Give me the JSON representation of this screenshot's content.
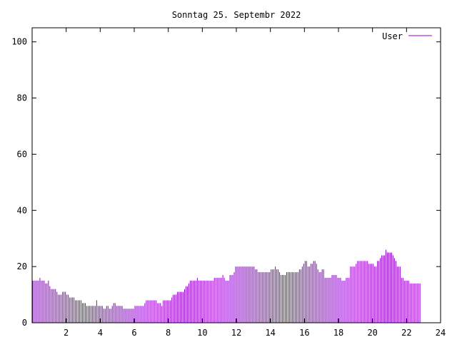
{
  "chart_data": {
    "type": "bar",
    "title": "Sonntag 25. Septembr 2022",
    "xlabel": "",
    "ylabel": "",
    "xlim": [
      0,
      24
    ],
    "ylim": [
      0,
      105
    ],
    "xticks": [
      2,
      4,
      6,
      8,
      10,
      12,
      14,
      16,
      18,
      20,
      22,
      24
    ],
    "yticks": [
      0,
      20,
      40,
      60,
      80,
      100
    ],
    "grid": false,
    "legend_position": "top-right",
    "series": [
      {
        "name": "User",
        "color": "#9400d3",
        "sample_interval_hours": 0.08333,
        "values": [
          15,
          15,
          15,
          15,
          15,
          16,
          15,
          15,
          15,
          14,
          14,
          15,
          13,
          12,
          12,
          12,
          12,
          11,
          10,
          10,
          10,
          11,
          11,
          11,
          10,
          10,
          9,
          9,
          9,
          9,
          8,
          8,
          8,
          8,
          8,
          7,
          7,
          7,
          6,
          6,
          6,
          6,
          6,
          6,
          6,
          8,
          6,
          6,
          6,
          6,
          5,
          5,
          6,
          6,
          5,
          5,
          6,
          7,
          7,
          6,
          6,
          6,
          6,
          6,
          5,
          5,
          5,
          5,
          5,
          5,
          5,
          5,
          6,
          6,
          6,
          6,
          6,
          6,
          6,
          7,
          8,
          8,
          8,
          8,
          8,
          8,
          8,
          8,
          7,
          7,
          7,
          6,
          8,
          8,
          8,
          8,
          8,
          8,
          9,
          10,
          10,
          10,
          11,
          11,
          11,
          11,
          11,
          12,
          13,
          13,
          14,
          15,
          15,
          15,
          15,
          15,
          16,
          15,
          15,
          15,
          15,
          15,
          15,
          15,
          15,
          15,
          15,
          15,
          16,
          16,
          16,
          16,
          16,
          16,
          17,
          16,
          15,
          15,
          15,
          17,
          17,
          17,
          18,
          20,
          20,
          20,
          20,
          20,
          20,
          20,
          20,
          20,
          20,
          20,
          20,
          20,
          20,
          19,
          19,
          18,
          18,
          18,
          18,
          18,
          18,
          18,
          18,
          18,
          19,
          19,
          19,
          20,
          19,
          19,
          18,
          17,
          17,
          17,
          17,
          18,
          18,
          18,
          18,
          18,
          18,
          18,
          18,
          18,
          19,
          19,
          20,
          21,
          22,
          22,
          20,
          20,
          21,
          21,
          22,
          22,
          21,
          19,
          18,
          18,
          19,
          19,
          16,
          16,
          16,
          16,
          16,
          17,
          17,
          17,
          17,
          16,
          16,
          16,
          15,
          15,
          15,
          16,
          16,
          16,
          20,
          20,
          20,
          20,
          21,
          22,
          22,
          22,
          22,
          22,
          22,
          22,
          22,
          21,
          21,
          21,
          21,
          20,
          20,
          22,
          22,
          23,
          24,
          24,
          24,
          26,
          25,
          25,
          25,
          25,
          24,
          23,
          22,
          20,
          20,
          20,
          16,
          16,
          15,
          15,
          15,
          15,
          14,
          14,
          14,
          14,
          14,
          14,
          14,
          14
        ]
      }
    ]
  }
}
